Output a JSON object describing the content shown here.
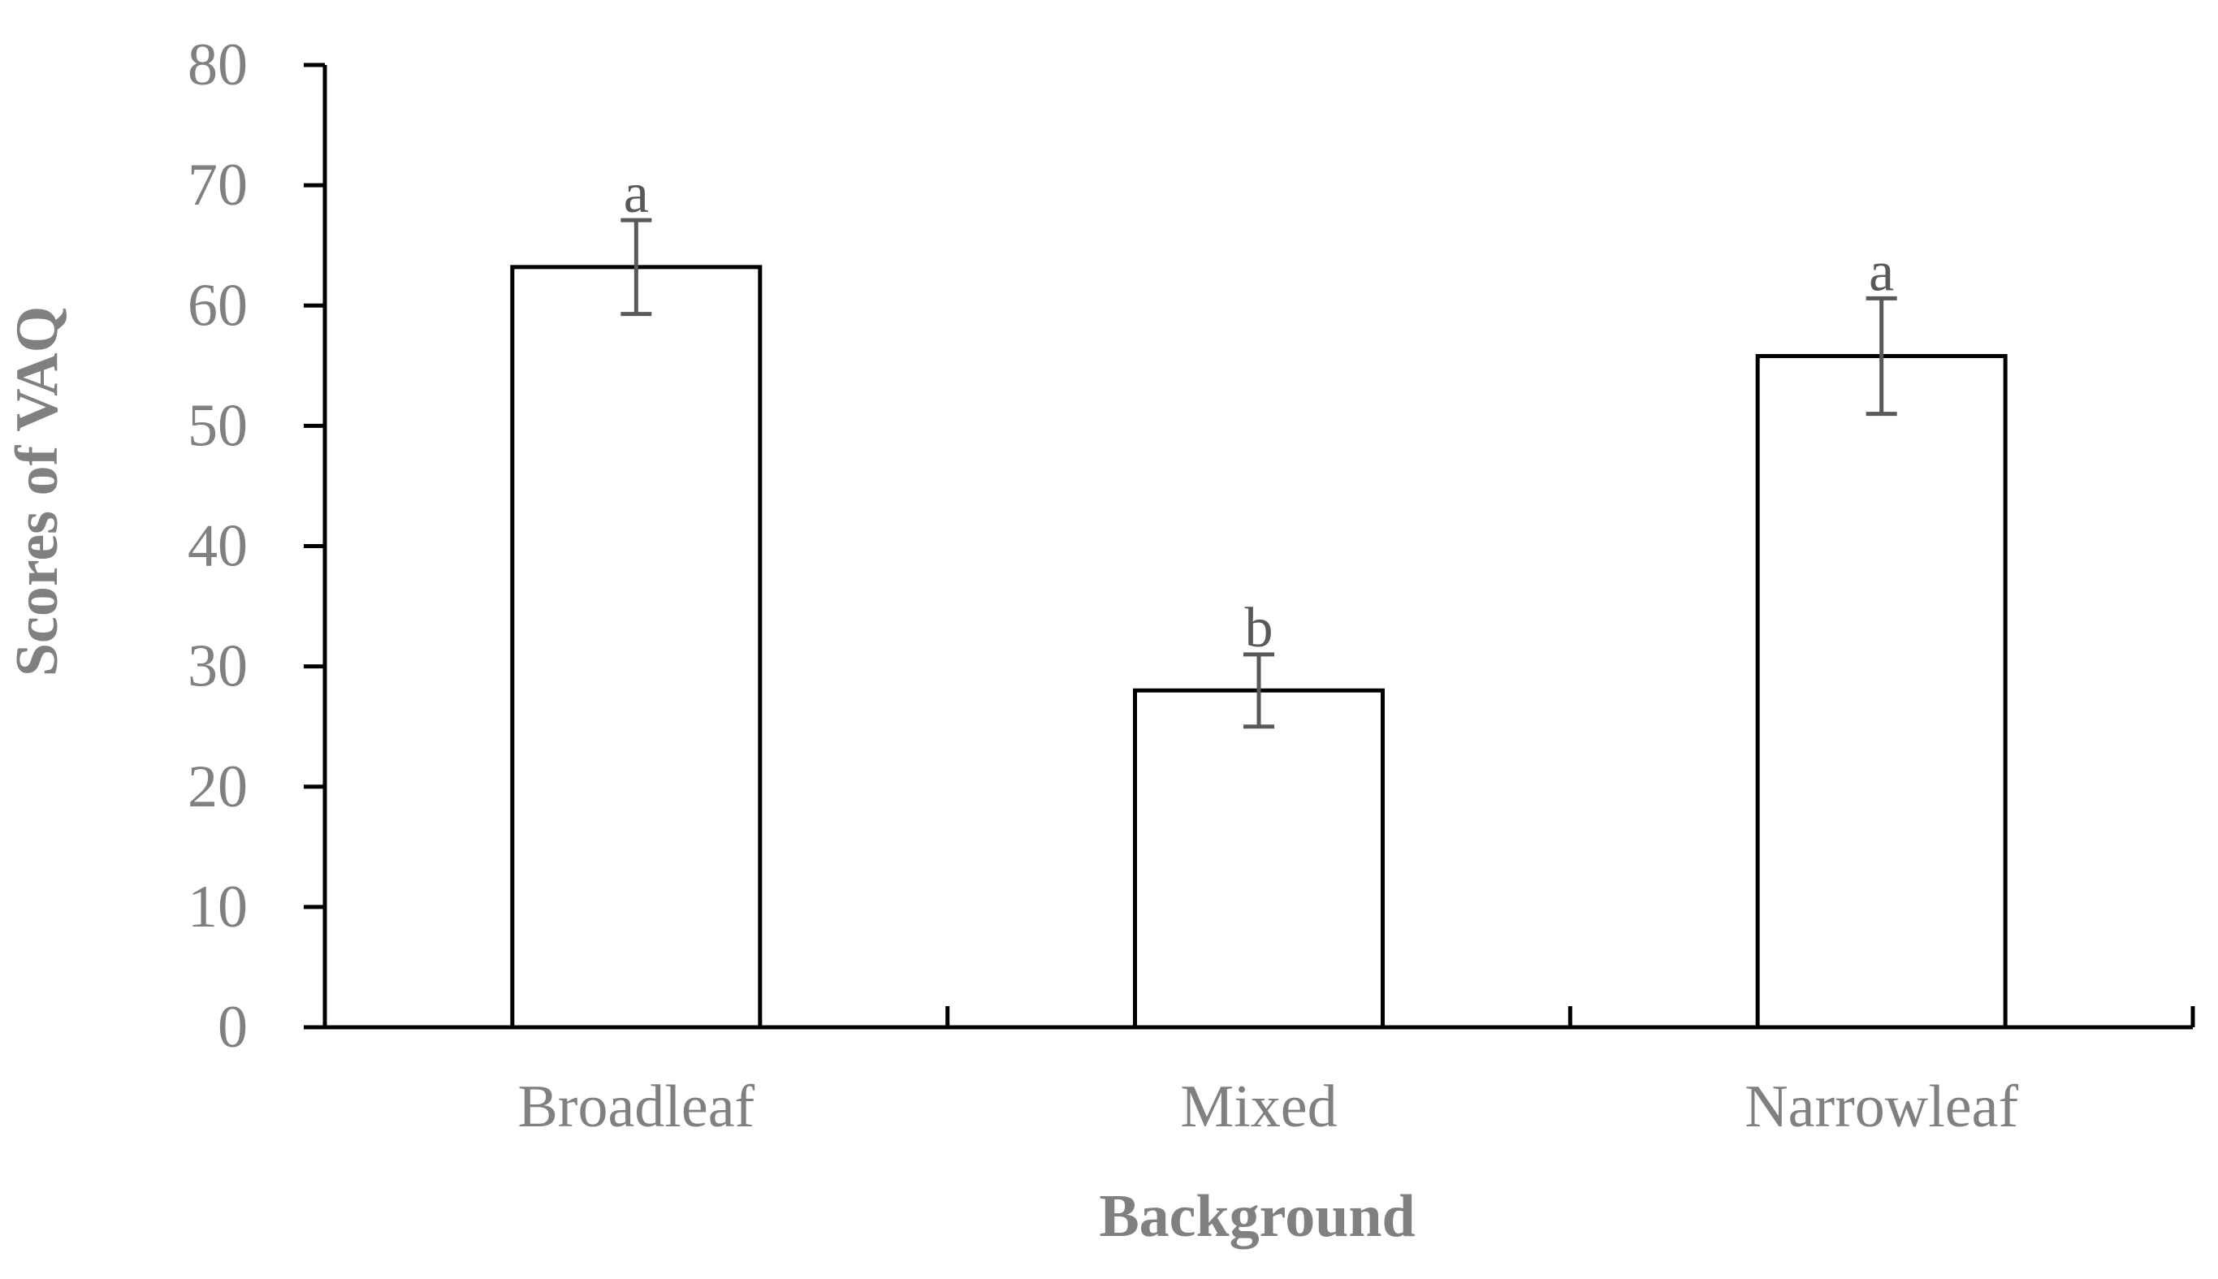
{
  "chart_data": {
    "type": "bar",
    "title": "",
    "xlabel": "Background",
    "ylabel": "Scores of VAQ",
    "categories": [
      "Broadleaf",
      "Mixed",
      "Narrowleaf"
    ],
    "series": [
      {
        "values": [
          63.2,
          28.0,
          55.8
        ],
        "error": [
          3.9,
          3.0,
          4.8
        ],
        "labels": [
          "a",
          "b",
          "a"
        ]
      }
    ],
    "ylim": [
      0,
      80
    ],
    "yticks": [
      "0",
      "10",
      "20",
      "30",
      "40",
      "50",
      "60",
      "70",
      "80"
    ],
    "grid": false,
    "legend": "none",
    "colors": {
      "bar_fill": "#ffffff",
      "bar_stroke": "#000000",
      "axis": "#000000",
      "error_bar": "#595959",
      "tick_label": "#808080",
      "axis_title": "#808080",
      "sig_label": "#595959"
    }
  }
}
